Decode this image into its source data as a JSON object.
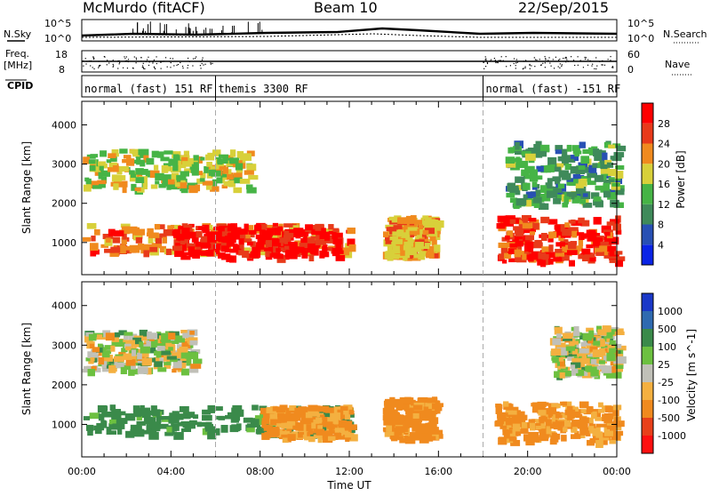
{
  "header": {
    "station": "McMurdo (fitACF)",
    "beam": "Beam 10",
    "date": "22/Sep/2015"
  },
  "summary_panels": {
    "nsky_label": "N.Sky",
    "nsky_ticks": [
      "10^5",
      "10^0"
    ],
    "nsearch_label": "N.Search",
    "nsearch_ticks": [
      "10^5",
      "10^0"
    ],
    "freq_label": "Freq.",
    "freq_unit": "[MHz]",
    "freq_ticks": [
      "18",
      "8"
    ],
    "nave_label": "Nave",
    "nave_ticks": [
      "60",
      "0"
    ],
    "cpid_label": "CPID",
    "cpid_segments": [
      {
        "label": "normal (fast) 151 RF",
        "start_h": 0,
        "end_h": 6
      },
      {
        "label": "themis 3300 RF",
        "start_h": 6,
        "end_h": 18
      },
      {
        "label": "normal (fast) -151 RF",
        "start_h": 18,
        "end_h": 24
      }
    ]
  },
  "chart_data": [
    {
      "type": "heatmap",
      "title": "",
      "xlabel": "Time UT",
      "ylabel": "Slant Range [km]",
      "x_range_hours": [
        0,
        24
      ],
      "x_ticks": [
        "00:00",
        "04:00",
        "08:00",
        "12:00",
        "16:00",
        "20:00",
        "00:00"
      ],
      "ylim": [
        180,
        4600
      ],
      "y_ticks": [
        1000,
        2000,
        3000,
        4000
      ],
      "colorbar": {
        "label": "Power [dB]",
        "ticks": [
          4,
          8,
          12,
          16,
          20,
          24,
          28
        ],
        "range": [
          0,
          30
        ],
        "colors": [
          "#0a24e6",
          "#2850b4",
          "#3f8a5a",
          "#46b446",
          "#d8d03a",
          "#f08a1e",
          "#e83a1a",
          "#ff0000"
        ]
      },
      "echo_regions": [
        {
          "t": [
            0.0,
            12.0
          ],
          "r": [
            800,
            1500
          ],
          "level": 24
        },
        {
          "t": [
            4.0,
            11.5
          ],
          "r": [
            650,
            1500
          ],
          "level": 30
        },
        {
          "t": [
            0.0,
            7.5
          ],
          "r": [
            2400,
            3400
          ],
          "level": 17
        },
        {
          "t": [
            13.5,
            15.8
          ],
          "r": [
            700,
            1700
          ],
          "level": 21
        },
        {
          "t": [
            18.5,
            24.0
          ],
          "r": [
            550,
            1700
          ],
          "level": 27
        },
        {
          "t": [
            19.0,
            24.0
          ],
          "r": [
            2000,
            3600
          ],
          "level": 12
        }
      ]
    },
    {
      "type": "heatmap",
      "title": "",
      "xlabel": "Time UT",
      "ylabel": "Slant Range [km]",
      "x_range_hours": [
        0,
        24
      ],
      "x_ticks": [
        "00:00",
        "04:00",
        "08:00",
        "12:00",
        "16:00",
        "20:00",
        "00:00"
      ],
      "ylim": [
        180,
        4600
      ],
      "y_ticks": [
        1000,
        2000,
        3000,
        4000
      ],
      "colorbar": {
        "label": "Velocity [m s^-1]",
        "ticks": [
          1000,
          500,
          100,
          25,
          -25,
          -100,
          -500,
          -1000
        ],
        "colors": [
          "#1a38c8",
          "#2f6ab0",
          "#3a8a4a",
          "#6cc040",
          "#c0c0b8",
          "#f4b040",
          "#f08a1e",
          "#e8401a",
          "#ff1010"
        ]
      },
      "echo_regions": [
        {
          "t": [
            0.0,
            12.0
          ],
          "r": [
            800,
            1500
          ],
          "velocity": 200
        },
        {
          "t": [
            8.0,
            12.0
          ],
          "r": [
            700,
            1500
          ],
          "velocity": -150
        },
        {
          "t": [
            0.0,
            5.0
          ],
          "r": [
            2400,
            3400
          ],
          "velocity": 0
        },
        {
          "t": [
            13.5,
            15.8
          ],
          "r": [
            700,
            1700
          ],
          "velocity": -200
        },
        {
          "t": [
            18.5,
            24.0
          ],
          "r": [
            600,
            1600
          ],
          "velocity": -150
        },
        {
          "t": [
            21.0,
            24.0
          ],
          "r": [
            2300,
            3500
          ],
          "velocity": 0
        }
      ]
    }
  ]
}
